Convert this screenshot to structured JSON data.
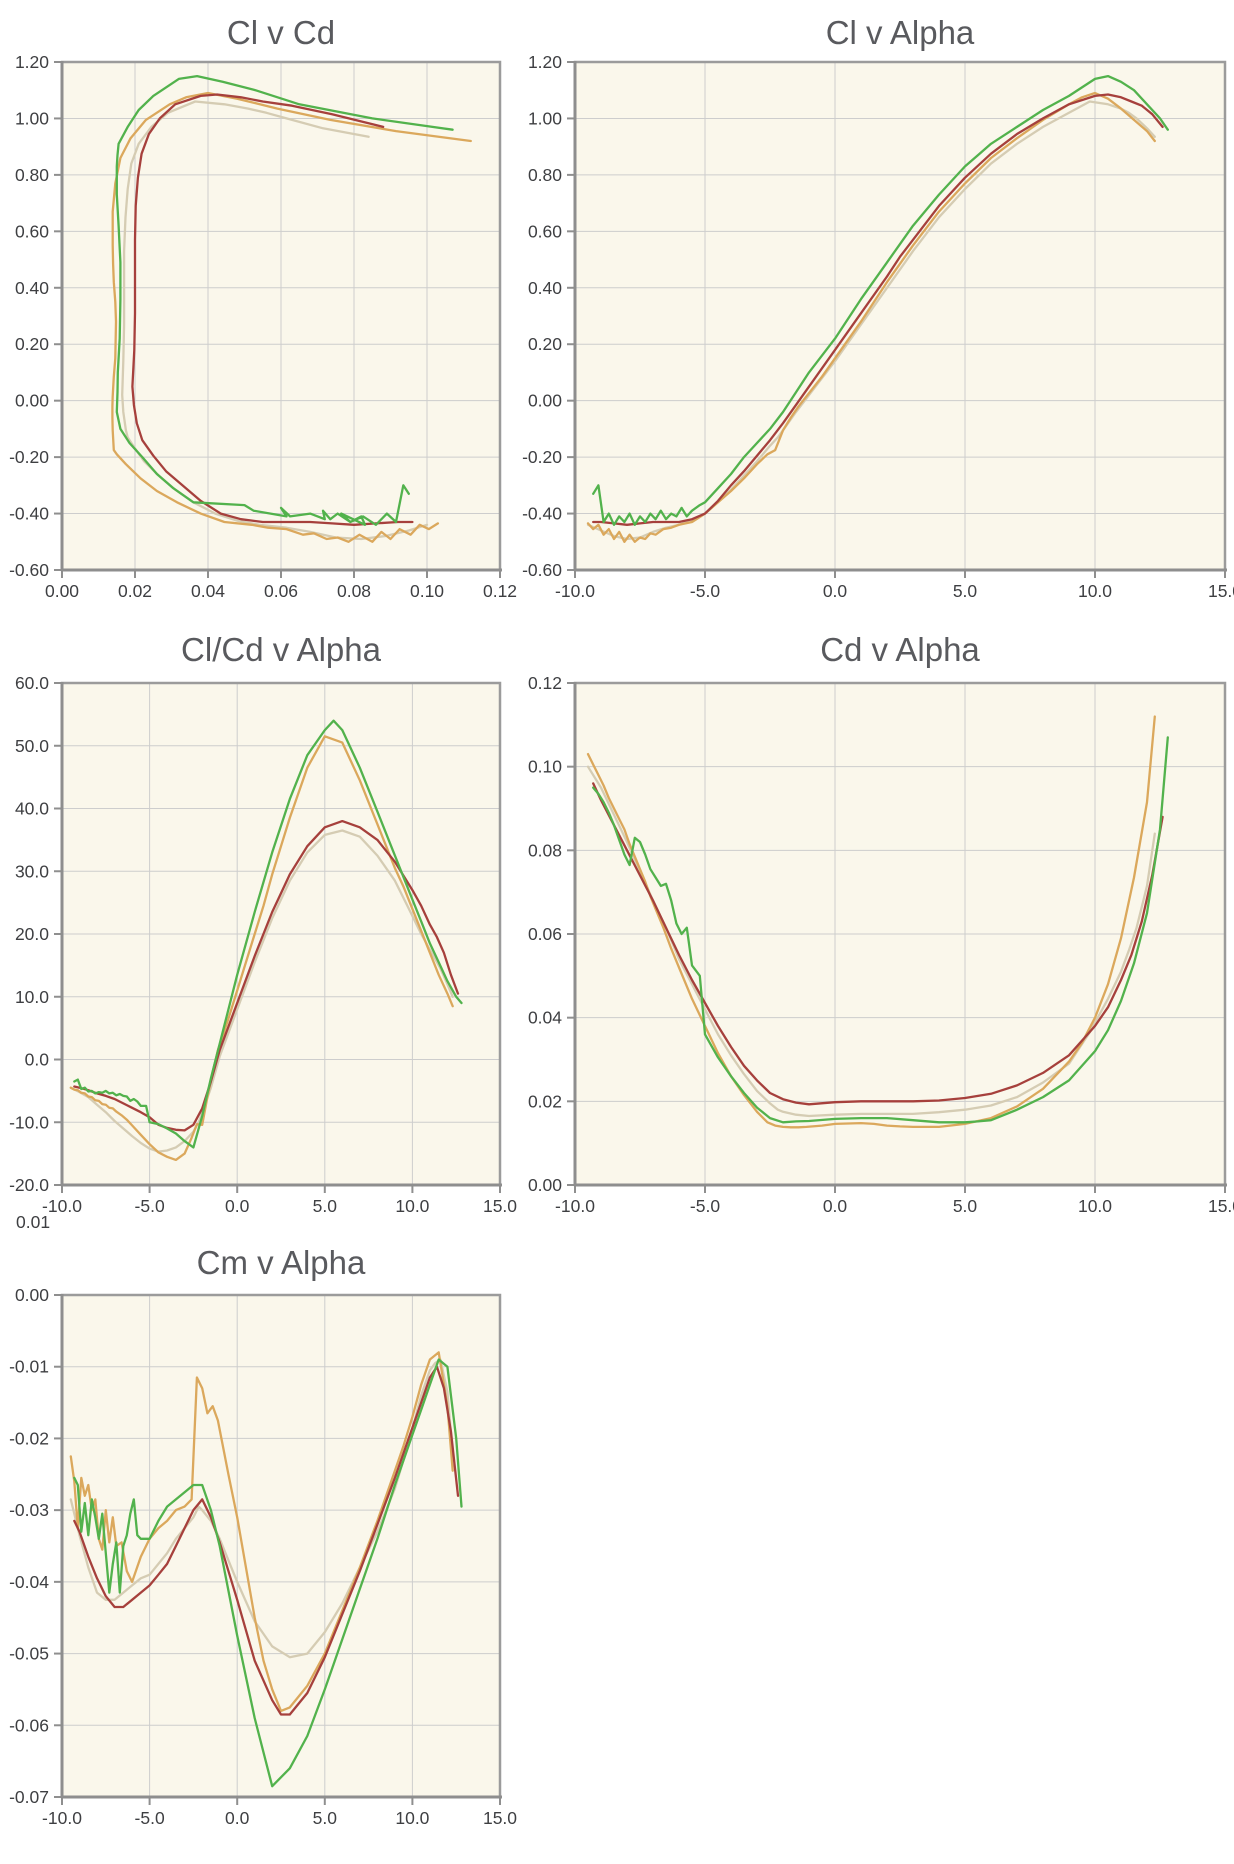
{
  "style": {
    "plot_background": "#faf7eb",
    "grid_color": "#cdcdcd",
    "border_color": "#9b9b9b",
    "border_dark": "#8e8e8e",
    "tick_color": "#8f8f8f",
    "tick_label_color": "#3e3f42",
    "title_color": "#595a5e"
  },
  "series_order": [
    "beige",
    "tan",
    "red",
    "green"
  ],
  "series_colors": {
    "green": "#52b24c",
    "red": "#a6403c",
    "tan": "#dba85c",
    "beige": "#d5ccb3"
  },
  "stray_label": "0.01",
  "charts": [
    {
      "title": "Cl v Cd",
      "x_field": "cd",
      "y_field": "cl",
      "xmin": 0,
      "xmax": 0.12,
      "ymin": -0.6,
      "ymax": 1.2,
      "xticks": [
        {
          "v": 0,
          "t": "0.00"
        },
        {
          "v": 0.02,
          "t": "0.02"
        },
        {
          "v": 0.04,
          "t": "0.04"
        },
        {
          "v": 0.06,
          "t": "0.06"
        },
        {
          "v": 0.08,
          "t": "0.08"
        },
        {
          "v": 0.1,
          "t": "0.10"
        },
        {
          "v": 0.12,
          "t": "0.12"
        }
      ],
      "yticks": [
        {
          "v": 1.2,
          "t": "1.20"
        },
        {
          "v": 1.0,
          "t": "1.00"
        },
        {
          "v": 0.8,
          "t": "0.80"
        },
        {
          "v": 0.6,
          "t": "0.60"
        },
        {
          "v": 0.4,
          "t": "0.40"
        },
        {
          "v": 0.2,
          "t": "0.20"
        },
        {
          "v": 0,
          "t": "0.00"
        },
        {
          "v": -0.2,
          "t": "-0.20"
        },
        {
          "v": -0.4,
          "t": "-0.40"
        },
        {
          "v": -0.6,
          "t": "-0.60"
        }
      ]
    },
    {
      "title": "Cl v Alpha",
      "x_field": "alpha",
      "y_field": "cl",
      "xmin": -10,
      "xmax": 15,
      "ymin": -0.6,
      "ymax": 1.2,
      "xticks": [
        {
          "v": -10,
          "t": "-10.0"
        },
        {
          "v": -5,
          "t": "-5.0"
        },
        {
          "v": 0,
          "t": "0.0"
        },
        {
          "v": 5,
          "t": "5.0"
        },
        {
          "v": 10,
          "t": "10.0"
        },
        {
          "v": 15,
          "t": "15.0"
        }
      ],
      "yticks": [
        {
          "v": 1.2,
          "t": "1.20"
        },
        {
          "v": 1.0,
          "t": "1.00"
        },
        {
          "v": 0.8,
          "t": "0.80"
        },
        {
          "v": 0.6,
          "t": "0.60"
        },
        {
          "v": 0.4,
          "t": "0.40"
        },
        {
          "v": 0.2,
          "t": "0.20"
        },
        {
          "v": 0,
          "t": "0.00"
        },
        {
          "v": -0.2,
          "t": "-0.20"
        },
        {
          "v": -0.4,
          "t": "-0.40"
        },
        {
          "v": -0.6,
          "t": "-0.60"
        }
      ]
    },
    {
      "title": "Cl/Cd v Alpha",
      "x_field": "alpha",
      "y_field": "clcd",
      "xmin": -10,
      "xmax": 15,
      "ymin": -20,
      "ymax": 60,
      "xticks": [
        {
          "v": -10,
          "t": "-10.0"
        },
        {
          "v": -5,
          "t": "-5.0"
        },
        {
          "v": 0,
          "t": "0.0"
        },
        {
          "v": 5,
          "t": "5.0"
        },
        {
          "v": 10,
          "t": "10.0"
        },
        {
          "v": 15,
          "t": "15.0"
        }
      ],
      "yticks": [
        {
          "v": 60,
          "t": "60.0"
        },
        {
          "v": 50,
          "t": "50.0"
        },
        {
          "v": 40,
          "t": "40.0"
        },
        {
          "v": 30,
          "t": "30.0"
        },
        {
          "v": 20,
          "t": "20.0"
        },
        {
          "v": 10,
          "t": "10.0"
        },
        {
          "v": 0,
          "t": "0.0"
        },
        {
          "v": -10,
          "t": "-10.0"
        },
        {
          "v": -20,
          "t": "-20.0"
        }
      ]
    },
    {
      "title": "Cd v Alpha",
      "x_field": "alpha",
      "y_field": "cd",
      "xmin": -10,
      "xmax": 15,
      "ymin": 0,
      "ymax": 0.12,
      "xticks": [
        {
          "v": -10,
          "t": "-10.0"
        },
        {
          "v": -5,
          "t": "-5.0"
        },
        {
          "v": 0,
          "t": "0.0"
        },
        {
          "v": 5,
          "t": "5.0"
        },
        {
          "v": 10,
          "t": "10.0"
        },
        {
          "v": 15,
          "t": "15.0"
        }
      ],
      "yticks": [
        {
          "v": 0.12,
          "t": "0.12"
        },
        {
          "v": 0.1,
          "t": "0.10"
        },
        {
          "v": 0.08,
          "t": "0.08"
        },
        {
          "v": 0.06,
          "t": "0.06"
        },
        {
          "v": 0.04,
          "t": "0.04"
        },
        {
          "v": 0.02,
          "t": "0.02"
        },
        {
          "v": 0,
          "t": "0.00"
        }
      ]
    },
    {
      "title": "Cm v Alpha",
      "x_field": "alpha",
      "y_field": "cm",
      "xmin": -10,
      "xmax": 15,
      "ymin": -0.07,
      "ymax": 0,
      "xticks": [
        {
          "v": -10,
          "t": "-10.0"
        },
        {
          "v": -5,
          "t": "-5.0"
        },
        {
          "v": 0,
          "t": "0.0"
        },
        {
          "v": 5,
          "t": "5.0"
        },
        {
          "v": 10,
          "t": "10.0"
        },
        {
          "v": 15,
          "t": "15.0"
        }
      ],
      "yticks": [
        {
          "v": 0,
          "t": "0.00"
        },
        {
          "v": -0.01,
          "t": "-0.01"
        },
        {
          "v": -0.02,
          "t": "-0.02"
        },
        {
          "v": -0.03,
          "t": "-0.03"
        },
        {
          "v": -0.04,
          "t": "-0.04"
        },
        {
          "v": -0.05,
          "t": "-0.05"
        },
        {
          "v": -0.06,
          "t": "-0.06"
        },
        {
          "v": -0.07,
          "t": "-0.07"
        }
      ]
    }
  ],
  "chart_data": {
    "note": "Four unlabeled polar series (no legend shown); identified by line color. Fields: alpha (deg), cl, cd, clcd (=Cl/Cd), cm. The five charts plot cd-vs-cl, alpha-vs-cl, alpha-vs-clcd, alpha-vs-cd, alpha-vs-cm.",
    "type": "line"
  },
  "polars": {
    "green": {
      "alpha": [
        -9.3,
        -9.1,
        -8.9,
        -8.7,
        -8.5,
        -8.3,
        -8.1,
        -7.9,
        -7.7,
        -7.5,
        -7.3,
        -7.1,
        -6.9,
        -6.7,
        -6.5,
        -6.3,
        -6.1,
        -5.9,
        -5.7,
        -5.5,
        -5.2,
        -5,
        -4.5,
        -4,
        -3.5,
        -3,
        -2.5,
        -2,
        -1.5,
        -1,
        0,
        1,
        2,
        3,
        4,
        5,
        5.5,
        6,
        7,
        8,
        9,
        10,
        10.5,
        11,
        11.5,
        12,
        12.5,
        12.8
      ],
      "cl": [
        -0.33,
        -0.3,
        -0.43,
        -0.4,
        -0.44,
        -0.41,
        -0.43,
        -0.4,
        -0.44,
        -0.41,
        -0.43,
        -0.4,
        -0.42,
        -0.39,
        -0.42,
        -0.4,
        -0.41,
        -0.38,
        -0.41,
        -0.39,
        -0.37,
        -0.36,
        -0.31,
        -0.26,
        -0.2,
        -0.15,
        -0.1,
        -0.04,
        0.03,
        0.1,
        0.22,
        0.36,
        0.49,
        0.62,
        0.73,
        0.83,
        0.87,
        0.91,
        0.97,
        1.03,
        1.08,
        1.14,
        1.15,
        1.13,
        1.1,
        1.05,
        1.0,
        0.96
      ],
      "cd": [
        0.095,
        0.0935,
        0.0915,
        0.089,
        0.086,
        0.0825,
        0.079,
        0.0765,
        0.083,
        0.082,
        0.079,
        0.0755,
        0.0735,
        0.0715,
        0.072,
        0.068,
        0.0625,
        0.06,
        0.0615,
        0.0525,
        0.05,
        0.036,
        0.0305,
        0.026,
        0.022,
        0.0185,
        0.016,
        0.015,
        0.0152,
        0.0153,
        0.0158,
        0.016,
        0.016,
        0.0155,
        0.015,
        0.015,
        0.0152,
        0.0155,
        0.018,
        0.021,
        0.025,
        0.032,
        0.037,
        0.044,
        0.053,
        0.065,
        0.085,
        0.107
      ],
      "clcd": [
        -3.5,
        -3.2,
        -4.7,
        -4.5,
        -5.1,
        -5.0,
        -5.4,
        -5.2,
        -5.3,
        -5.0,
        -5.4,
        -5.3,
        -5.7,
        -5.5,
        -5.8,
        -5.9,
        -6.6,
        -6.3,
        -6.7,
        -7.4,
        -7.4,
        -10.0,
        -10.3,
        -11.0,
        -11.8,
        -13.0,
        -14.0,
        -9.0,
        -3.0,
        2.5,
        13.5,
        23.5,
        33.0,
        41.5,
        48.5,
        52.5,
        54.0,
        52.5,
        46.5,
        39.5,
        32.5,
        25.5,
        22.0,
        18.5,
        15.5,
        12.5,
        10.0,
        9.0
      ],
      "cm": [
        -0.0255,
        -0.0265,
        -0.033,
        -0.029,
        -0.0335,
        -0.0285,
        -0.031,
        -0.034,
        -0.0305,
        -0.036,
        -0.0415,
        -0.0375,
        -0.0345,
        -0.0415,
        -0.035,
        -0.0335,
        -0.0305,
        -0.0285,
        -0.0335,
        -0.034,
        -0.034,
        -0.034,
        -0.0315,
        -0.0295,
        -0.0285,
        -0.0275,
        -0.0265,
        -0.0265,
        -0.03,
        -0.035,
        -0.0475,
        -0.059,
        -0.0685,
        -0.066,
        -0.0615,
        -0.055,
        -0.0515,
        -0.048,
        -0.041,
        -0.034,
        -0.0265,
        -0.0195,
        -0.016,
        -0.0125,
        -0.009,
        -0.01,
        -0.02,
        -0.0295
      ]
    },
    "red": {
      "alpha": [
        -9.3,
        -9,
        -8.5,
        -8,
        -7.5,
        -7,
        -6.5,
        -6,
        -5.5,
        -5,
        -4.5,
        -4,
        -3.5,
        -3,
        -2.5,
        -2,
        -1.5,
        -1,
        0,
        1,
        2,
        2.5,
        3,
        4,
        5,
        6,
        7,
        8,
        9,
        10,
        10.5,
        11,
        11.4,
        11.8,
        12.2,
        12.6
      ],
      "cl": [
        -0.43,
        -0.43,
        -0.435,
        -0.44,
        -0.435,
        -0.43,
        -0.43,
        -0.43,
        -0.42,
        -0.4,
        -0.355,
        -0.3,
        -0.25,
        -0.195,
        -0.14,
        -0.08,
        -0.015,
        0.05,
        0.18,
        0.31,
        0.44,
        0.51,
        0.57,
        0.69,
        0.79,
        0.875,
        0.945,
        1.0,
        1.05,
        1.08,
        1.085,
        1.075,
        1.06,
        1.045,
        1.015,
        0.97
      ],
      "cd": [
        0.096,
        0.092,
        0.086,
        0.08,
        0.074,
        0.068,
        0.0615,
        0.055,
        0.049,
        0.0435,
        0.038,
        0.033,
        0.0285,
        0.025,
        0.022,
        0.0205,
        0.0197,
        0.0193,
        0.0198,
        0.02,
        0.02,
        0.02,
        0.02,
        0.0202,
        0.0208,
        0.0218,
        0.0238,
        0.0268,
        0.031,
        0.038,
        0.0425,
        0.049,
        0.055,
        0.063,
        0.074,
        0.088
      ],
      "clcd": [
        -4.3,
        -4.5,
        -4.9,
        -5.4,
        -5.8,
        -6.3,
        -7.0,
        -7.7,
        -8.4,
        -9.2,
        -10.4,
        -10.9,
        -11.2,
        -11.3,
        -10.4,
        -7.8,
        -3.5,
        1.5,
        9.0,
        16.5,
        23.5,
        26.5,
        29.5,
        34.0,
        37.0,
        38.0,
        37.0,
        35.0,
        31.5,
        27.0,
        24.5,
        21.5,
        19.5,
        17.0,
        13.5,
        10.5
      ],
      "cm": [
        -0.0315,
        -0.033,
        -0.0365,
        -0.0395,
        -0.042,
        -0.0435,
        -0.0435,
        -0.0425,
        -0.0415,
        -0.0405,
        -0.039,
        -0.0375,
        -0.035,
        -0.0325,
        -0.03,
        -0.0285,
        -0.031,
        -0.0345,
        -0.0425,
        -0.051,
        -0.0565,
        -0.0585,
        -0.0585,
        -0.0555,
        -0.0505,
        -0.0445,
        -0.0385,
        -0.032,
        -0.0255,
        -0.0185,
        -0.015,
        -0.0115,
        -0.01,
        -0.013,
        -0.019,
        -0.028
      ]
    },
    "tan": {
      "alpha": [
        -9.5,
        -9.3,
        -9.1,
        -8.9,
        -8.7,
        -8.5,
        -8.3,
        -8.1,
        -7.9,
        -7.7,
        -7.5,
        -7.3,
        -7.1,
        -6.9,
        -6.6,
        -6.3,
        -6,
        -5.5,
        -5,
        -4.5,
        -4,
        -3.5,
        -3,
        -2.6,
        -2.3,
        -2,
        -1.7,
        -1.4,
        -1.1,
        -0.5,
        0,
        1,
        1.5,
        2,
        2.5,
        3,
        4,
        5,
        6,
        7,
        8,
        9,
        9.5,
        10,
        10.5,
        11,
        11.5,
        12,
        12.3
      ],
      "cl": [
        -0.435,
        -0.455,
        -0.44,
        -0.475,
        -0.455,
        -0.49,
        -0.465,
        -0.5,
        -0.475,
        -0.5,
        -0.485,
        -0.49,
        -0.47,
        -0.475,
        -0.455,
        -0.45,
        -0.44,
        -0.43,
        -0.4,
        -0.36,
        -0.32,
        -0.275,
        -0.225,
        -0.19,
        -0.175,
        -0.105,
        -0.06,
        -0.02,
        0.015,
        0.085,
        0.15,
        0.28,
        0.35,
        0.42,
        0.485,
        0.55,
        0.67,
        0.77,
        0.86,
        0.93,
        0.995,
        1.05,
        1.075,
        1.09,
        1.07,
        1.035,
        0.995,
        0.955,
        0.92
      ],
      "cd": [
        0.103,
        0.1005,
        0.098,
        0.0955,
        0.0925,
        0.09,
        0.0875,
        0.085,
        0.0815,
        0.0785,
        0.0755,
        0.0725,
        0.069,
        0.066,
        0.0615,
        0.0565,
        0.052,
        0.0445,
        0.038,
        0.0315,
        0.026,
        0.0215,
        0.0175,
        0.015,
        0.0142,
        0.0139,
        0.0138,
        0.0138,
        0.0139,
        0.0142,
        0.0146,
        0.0148,
        0.0146,
        0.0142,
        0.014,
        0.0139,
        0.0139,
        0.0146,
        0.016,
        0.0188,
        0.023,
        0.0295,
        0.034,
        0.04,
        0.048,
        0.059,
        0.0735,
        0.0915,
        0.112
      ],
      "clcd": [
        -4.5,
        -4.8,
        -4.9,
        -5.3,
        -5.4,
        -5.9,
        -6.0,
        -6.5,
        -6.6,
        -7.1,
        -7.2,
        -7.7,
        -7.8,
        -8.3,
        -8.9,
        -9.6,
        -10.5,
        -12.0,
        -13.5,
        -14.8,
        -15.5,
        -16.0,
        -15.0,
        -12.5,
        -10.3,
        -10.4,
        -6.0,
        -2.0,
        1.5,
        6.5,
        11.0,
        20.0,
        24.5,
        29.5,
        34.0,
        38.5,
        46.5,
        51.5,
        50.5,
        44.5,
        37.5,
        30.5,
        27.5,
        24.0,
        20.5,
        17.0,
        13.5,
        10.5,
        8.5
      ],
      "cm": [
        -0.0225,
        -0.026,
        -0.0325,
        -0.0255,
        -0.028,
        -0.0265,
        -0.03,
        -0.0285,
        -0.034,
        -0.0355,
        -0.03,
        -0.0345,
        -0.031,
        -0.035,
        -0.0345,
        -0.0385,
        -0.04,
        -0.0365,
        -0.034,
        -0.0325,
        -0.0315,
        -0.03,
        -0.0295,
        -0.0285,
        -0.0115,
        -0.013,
        -0.0165,
        -0.0155,
        -0.0175,
        -0.025,
        -0.031,
        -0.045,
        -0.051,
        -0.055,
        -0.058,
        -0.0575,
        -0.0545,
        -0.05,
        -0.044,
        -0.038,
        -0.0315,
        -0.0245,
        -0.021,
        -0.017,
        -0.0125,
        -0.009,
        -0.008,
        -0.0155,
        -0.0245
      ]
    },
    "beige": {
      "alpha": [
        -9.5,
        -9,
        -8.5,
        -8,
        -7.5,
        -7,
        -6.5,
        -6,
        -5.5,
        -5,
        -4.5,
        -4,
        -3.5,
        -3,
        -2.5,
        -2.2,
        -2,
        -1.5,
        -1,
        0,
        1,
        2,
        3,
        4,
        5,
        6,
        7,
        8,
        9,
        9.8,
        10.5,
        11,
        11.3,
        11.6,
        12,
        12.3
      ],
      "cl": [
        -0.44,
        -0.46,
        -0.48,
        -0.49,
        -0.485,
        -0.465,
        -0.45,
        -0.44,
        -0.425,
        -0.4,
        -0.36,
        -0.315,
        -0.265,
        -0.215,
        -0.16,
        -0.13,
        -0.105,
        -0.04,
        0.02,
        0.14,
        0.27,
        0.4,
        0.53,
        0.65,
        0.75,
        0.84,
        0.91,
        0.97,
        1.02,
        1.06,
        1.05,
        1.035,
        1.02,
        1.0,
        0.965,
        0.935
      ],
      "cd": [
        0.1,
        0.095,
        0.0885,
        0.082,
        0.075,
        0.068,
        0.0615,
        0.054,
        0.048,
        0.042,
        0.036,
        0.031,
        0.0265,
        0.0225,
        0.0195,
        0.018,
        0.0175,
        0.0168,
        0.0165,
        0.0168,
        0.017,
        0.017,
        0.017,
        0.0174,
        0.018,
        0.019,
        0.021,
        0.0245,
        0.029,
        0.0365,
        0.0445,
        0.051,
        0.056,
        0.0615,
        0.0715,
        0.084
      ],
      "clcd": [
        -4.5,
        -5.2,
        -6.0,
        -7.2,
        -8.4,
        -9.8,
        -11.0,
        -12.2,
        -13.3,
        -14.2,
        -14.7,
        -14.5,
        -14.0,
        -13.0,
        -11.5,
        -10.0,
        -8.5,
        -4.5,
        0.5,
        8.0,
        15.5,
        22.5,
        28.5,
        33.0,
        35.8,
        36.5,
        35.5,
        32.5,
        28.5,
        24.0,
        20.0,
        17.5,
        16.0,
        14.5,
        12.0,
        10.0
      ],
      "cm": [
        -0.0285,
        -0.0335,
        -0.038,
        -0.0415,
        -0.0425,
        -0.0425,
        -0.0415,
        -0.0405,
        -0.0395,
        -0.039,
        -0.0375,
        -0.036,
        -0.034,
        -0.0325,
        -0.031,
        -0.0295,
        -0.03,
        -0.0315,
        -0.034,
        -0.04,
        -0.0455,
        -0.049,
        -0.0505,
        -0.05,
        -0.047,
        -0.043,
        -0.038,
        -0.033,
        -0.027,
        -0.0205,
        -0.014,
        -0.0105,
        -0.0095,
        -0.009,
        -0.0135,
        -0.022
      ]
    }
  }
}
